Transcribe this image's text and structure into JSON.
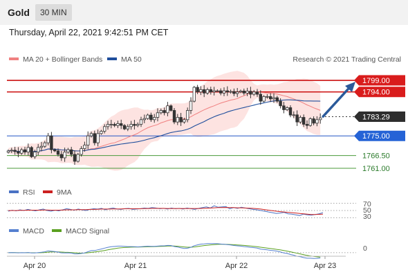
{
  "header": {
    "title": "Gold",
    "timeframe": "30 MIN"
  },
  "timestamp": "Thursday, April 22, 2021 9:42:51 PM CET",
  "legend": {
    "ma20": "MA 20 + Bollinger Bands",
    "ma50": "MA 50",
    "credit": "Research © 2021 Trading Central"
  },
  "colors": {
    "ma20": "#f08080",
    "ma50": "#1f4e9c",
    "resistance": "#cc1010",
    "pivot": "#2457c5",
    "support": "#4a9a3a",
    "last": "#333333",
    "rsi": "#4a72c4",
    "rsi_ma": "#cc2020",
    "macd": "#5580d0",
    "macd_signal": "#5aa020",
    "arrow": "#2b5a9a"
  },
  "chart_data": [
    {
      "type": "candlestick",
      "x_ticks": [
        "Apr 20",
        "Apr 21",
        "Apr 22",
        "Apr 23"
      ],
      "ylim": [
        1755,
        1805
      ],
      "close": [
        1768.5,
        1768.8,
        1768.2,
        1767.5,
        1769,
        1768,
        1770,
        1766,
        1768,
        1770,
        1770.5,
        1772,
        1775,
        1769,
        1768.5,
        1767,
        1765.5,
        1768,
        1769,
        1767,
        1764,
        1767,
        1769.5,
        1771,
        1775,
        1776,
        1772,
        1776,
        1777,
        1779,
        1780,
        1780,
        1779.5,
        1780.3,
        1779.5,
        1778,
        1779,
        1780,
        1779.5,
        1780,
        1782,
        1782.5,
        1784,
        1782,
        1783,
        1785,
        1786,
        1785,
        1788,
        1786,
        1781,
        1783,
        1781,
        1782,
        1786,
        1790,
        1796,
        1794,
        1795,
        1793.5,
        1795,
        1794,
        1794.5,
        1794.5,
        1793.5,
        1794.5,
        1794,
        1794.2,
        1793.3,
        1794,
        1794.4,
        1793.5,
        1794.3,
        1793,
        1794,
        1793,
        1790,
        1792,
        1792,
        1791,
        1791.5,
        1790,
        1788,
        1786.3,
        1787.2,
        1784,
        1784.1,
        1781,
        1783,
        1780,
        1779.5,
        1782.4,
        1780.5,
        1782,
        1782.8
      ],
      "levels": [
        {
          "label": "1799.00",
          "value": 1799,
          "kind": "resistance"
        },
        {
          "label": "1794.00",
          "value": 1794,
          "kind": "resistance"
        },
        {
          "label": "1783.29",
          "value": 1783.29,
          "kind": "last"
        },
        {
          "label": "1775.00",
          "value": 1775,
          "kind": "pivot"
        },
        {
          "label": "1766.50",
          "value": 1766.5,
          "kind": "support"
        },
        {
          "label": "1761.00",
          "value": 1761,
          "kind": "support"
        }
      ]
    },
    {
      "type": "line",
      "legend": [
        "RSI",
        "9MA"
      ],
      "ylim": [
        25,
        75
      ],
      "y_ticks": [
        "70",
        "50",
        "30"
      ],
      "series": [
        {
          "name": "RSI",
          "values": [
            48,
            51,
            49,
            52,
            50,
            53,
            51,
            49,
            52,
            54,
            50,
            48,
            51,
            49,
            52,
            55,
            53,
            51,
            54,
            52,
            50,
            53,
            55,
            54,
            56,
            52,
            55,
            57,
            54,
            53,
            55,
            56,
            53,
            54,
            55,
            57,
            56,
            58,
            57,
            55,
            56,
            54,
            57,
            55,
            56,
            54,
            57,
            55,
            53,
            56,
            58,
            60,
            57,
            63,
            59,
            60,
            61,
            55,
            58,
            56,
            59,
            57,
            55,
            53,
            52,
            50,
            48,
            46,
            44,
            42,
            43,
            45,
            41,
            40,
            38,
            36,
            40,
            38,
            37,
            39,
            41,
            44
          ]
        },
        {
          "name": "9MA",
          "values": [
            50,
            50,
            50,
            50.5,
            50.5,
            51,
            51,
            51,
            51,
            51.5,
            51.5,
            51,
            51,
            51,
            51.5,
            52,
            52,
            52,
            52.5,
            52.5,
            52.5,
            53,
            53,
            53.5,
            54,
            54,
            54,
            54.5,
            54.5,
            54.5,
            55,
            55,
            55,
            55,
            55,
            55.5,
            55.5,
            56,
            56,
            56,
            56,
            55.5,
            55.5,
            55.5,
            55.5,
            55.5,
            55.5,
            55.5,
            55.5,
            55.5,
            56,
            56.5,
            57,
            57.5,
            58,
            58,
            58.5,
            58,
            58,
            57.5,
            57.5,
            57,
            56.5,
            56,
            55,
            54,
            52.5,
            51,
            49.5,
            48,
            47,
            46,
            45,
            44,
            43,
            42,
            41,
            40,
            39,
            39,
            39.5,
            40
          ]
        }
      ]
    },
    {
      "type": "line",
      "legend": [
        "MACD",
        "MACD Signal"
      ],
      "y_ticks": [
        "0"
      ],
      "ylim": [
        -3,
        4
      ]
    }
  ]
}
